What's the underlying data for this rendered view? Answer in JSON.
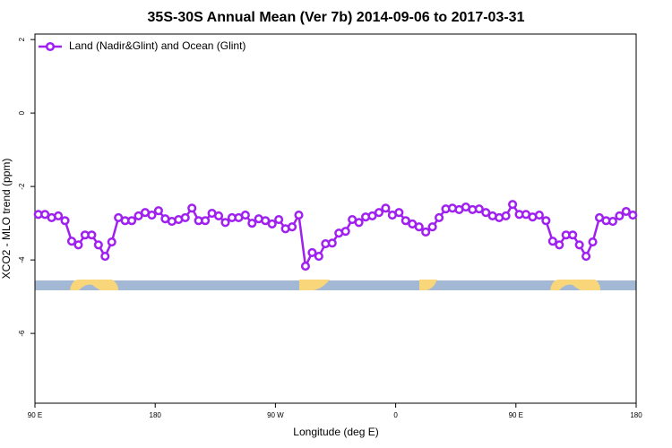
{
  "chart_data": {
    "type": "line",
    "title": "35S-30S Annual Mean (Ver 7b)   2014-09-06 to 2017-03-31",
    "xlabel": "Longitude (deg E)",
    "ylabel": "XCO2 - MLO trend (ppm)",
    "x": [
      92.5,
      97.5,
      102.5,
      107.5,
      112.5,
      117.5,
      122.5,
      127.5,
      132.5,
      137.5,
      142.5,
      147.5,
      152.5,
      157.5,
      162.5,
      167.5,
      172.5,
      177.5,
      182.5,
      187.5,
      192.5,
      197.5,
      202.5,
      207.5,
      212.5,
      217.5,
      222.5,
      227.5,
      232.5,
      237.5,
      242.5,
      247.5,
      252.5,
      257.5,
      262.5,
      267.5,
      272.5,
      277.5,
      282.5,
      287.5,
      292.5,
      297.5,
      302.5,
      307.5,
      312.5,
      317.5,
      322.5,
      327.5,
      332.5,
      337.5,
      342.5,
      347.5,
      352.5,
      357.5,
      362.5,
      367.5,
      372.5,
      377.5,
      382.5,
      387.5,
      392.5,
      397.5,
      402.5,
      407.5,
      412.5,
      417.5,
      422.5,
      427.5,
      432.5,
      437.5,
      442.5,
      447.5,
      452.5,
      457.5,
      462.5,
      467.5,
      472.5,
      477.5,
      482.5,
      487.5,
      492.5,
      497.5,
      502.5,
      507.5,
      512.5,
      517.5,
      522.5,
      527.5,
      532.5,
      537.5
    ],
    "series": [
      {
        "name": "Land (Nadir&Glint) and Ocean (Glint)",
        "color": "#a020f0",
        "values": [
          -2.76,
          -2.76,
          -2.85,
          -2.8,
          -2.93,
          -3.49,
          -3.59,
          -3.32,
          -3.32,
          -3.59,
          -3.9,
          -3.51,
          -2.85,
          -2.93,
          -2.93,
          -2.8,
          -2.71,
          -2.78,
          -2.66,
          -2.88,
          -2.95,
          -2.9,
          -2.85,
          -2.59,
          -2.93,
          -2.93,
          -2.73,
          -2.8,
          -2.98,
          -2.85,
          -2.85,
          -2.78,
          -3.0,
          -2.88,
          -2.93,
          -3.02,
          -2.9,
          -3.15,
          -3.1,
          -2.78,
          -4.17,
          -3.8,
          -3.9,
          -3.56,
          -3.54,
          -3.27,
          -3.22,
          -2.9,
          -2.98,
          -2.83,
          -2.8,
          -2.71,
          -2.59,
          -2.78,
          -2.71,
          -2.93,
          -3.02,
          -3.1,
          -3.24,
          -3.1,
          -2.85,
          -2.61,
          -2.59,
          -2.63,
          -2.56,
          -2.63,
          -2.61,
          -2.71,
          -2.8,
          -2.85,
          -2.8,
          -2.49,
          -2.76,
          -2.76,
          -2.83,
          -2.78,
          -2.93,
          -3.49,
          -3.59,
          -3.32,
          -3.32,
          -3.59,
          -3.9,
          -3.51,
          -2.85,
          -2.93,
          -2.95,
          -2.8,
          -2.68,
          -2.78
        ]
      }
    ],
    "xlim": [
      90,
      540
    ],
    "xticks": [
      {
        "value": 90,
        "label": "90 E"
      },
      180,
      {
        "value": 270,
        "label": "90 W"
      },
      {
        "value": 360,
        "label": "0"
      },
      {
        "value": 450,
        "label": "90 E"
      },
      {
        "value": 540,
        "label": "180"
      }
    ],
    "ylim": [
      -7.9,
      2.15
    ],
    "yticks": [
      -6,
      -4,
      -2,
      0,
      2
    ],
    "legend": "topleft"
  }
}
